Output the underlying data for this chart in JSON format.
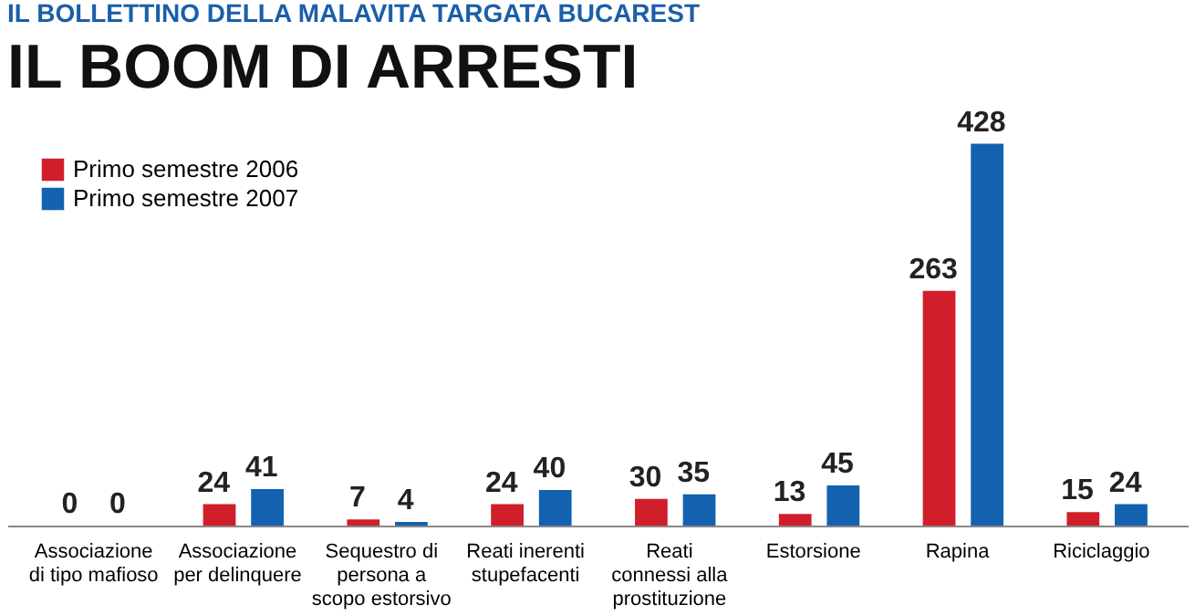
{
  "chart_data": {
    "type": "bar",
    "title": "IL BOLLETTINO DELLA MALAVITA TARGATA BUCAREST",
    "subtitle": "IL BOOM DI ARRESTI",
    "categories": [
      "Associazione\ndi tipo mafioso",
      "Associazione\nper delinquere",
      "Sequestro di\npersona a\nscopo estorsivo",
      "Reati inerenti\nstupefacenti",
      "Reati\nconnessi alla\nprostituzione",
      "Estorsione",
      "Rapina",
      "Riciclaggio"
    ],
    "series": [
      {
        "name": "Primo semestre 2006",
        "color": "#d01f2a",
        "values": [
          0,
          24,
          7,
          24,
          30,
          13,
          263,
          15
        ]
      },
      {
        "name": "Primo semestre 2007",
        "color": "#1262b0",
        "values": [
          0,
          41,
          4,
          40,
          35,
          45,
          428,
          24
        ]
      }
    ],
    "data_labels": true,
    "legend": "top left"
  }
}
